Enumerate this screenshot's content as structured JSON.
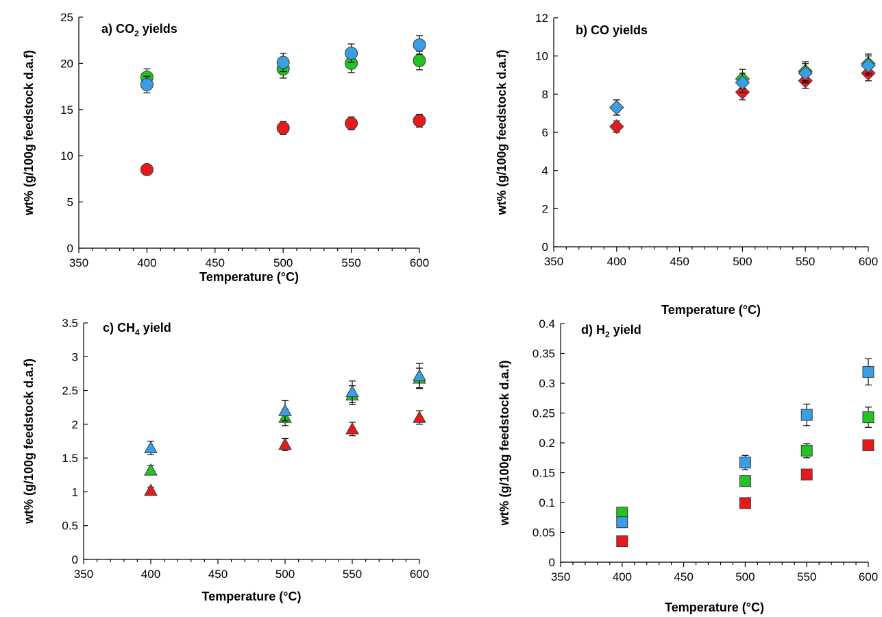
{
  "colors": {
    "red": "#e8191b",
    "green": "#22c322",
    "blue": "#3a9ee4"
  },
  "chart_data": [
    {
      "type": "scatter",
      "title": "a) CO2 yields",
      "title_parts": [
        "a) CO",
        "2",
        " yields"
      ],
      "xlabel": "Temperature (°C)",
      "ylabel": "wt% (g/100g feedstock d.a.f)",
      "xlim": [
        350,
        600
      ],
      "ylim": [
        0,
        25
      ],
      "xticks": [
        "350",
        "400",
        "450",
        "500",
        "550",
        "600"
      ],
      "yticks": [
        "0",
        "5",
        "10",
        "15",
        "20",
        "25"
      ],
      "marker": "circle",
      "grid": false,
      "series": [
        {
          "color": "red",
          "x": [
            400,
            500,
            550,
            600
          ],
          "y": [
            8.5,
            13.0,
            13.5,
            13.8
          ],
          "err": [
            0.3,
            0.7,
            0.7,
            0.7
          ]
        },
        {
          "color": "green",
          "x": [
            400,
            500,
            550,
            600
          ],
          "y": [
            18.5,
            19.4,
            20.0,
            20.3
          ],
          "err": [
            0.9,
            1.0,
            1.0,
            1.0
          ]
        },
        {
          "color": "blue",
          "x": [
            400,
            500,
            550,
            600
          ],
          "y": [
            17.7,
            20.1,
            21.1,
            22.0
          ],
          "err": [
            0.9,
            1.0,
            1.0,
            1.0
          ]
        }
      ]
    },
    {
      "type": "scatter",
      "title": "b) CO yields",
      "title_parts": [
        "b) CO yields",
        "",
        ""
      ],
      "xlabel": "Temperature (°C)",
      "ylabel": "wt% (g/100g feedstock d.a.f)",
      "xlim": [
        350,
        600
      ],
      "ylim": [
        0,
        12
      ],
      "xticks": [
        "350",
        "400",
        "450",
        "500",
        "550",
        "600"
      ],
      "yticks": [
        "0",
        "2",
        "4",
        "6",
        "8",
        "10",
        "12"
      ],
      "marker": "diamond",
      "grid": false,
      "series": [
        {
          "color": "red",
          "x": [
            400,
            500,
            550,
            600
          ],
          "y": [
            6.3,
            8.1,
            8.7,
            9.1
          ],
          "err": [
            0.3,
            0.4,
            0.4,
            0.4
          ]
        },
        {
          "color": "green",
          "x": [
            400,
            500,
            550,
            600
          ],
          "y": [
            7.3,
            8.8,
            9.2,
            9.6
          ],
          "err": [
            0.4,
            0.5,
            0.5,
            0.5
          ]
        },
        {
          "color": "blue",
          "x": [
            400,
            500,
            550,
            600
          ],
          "y": [
            7.3,
            8.6,
            9.1,
            9.5
          ],
          "err": [
            0.4,
            0.5,
            0.5,
            0.5
          ]
        }
      ]
    },
    {
      "type": "scatter",
      "title": "c) CH4 yield",
      "title_parts": [
        "c) CH",
        "4",
        " yield"
      ],
      "xlabel": "Temperature (°C)",
      "ylabel": "wt% (g/100g feedstock d.a.f)",
      "xlim": [
        350,
        600
      ],
      "ylim": [
        0,
        3.5
      ],
      "xticks": [
        "350",
        "400",
        "450",
        "500",
        "550",
        "600"
      ],
      "yticks": [
        "0",
        "0.5",
        "1",
        "1.5",
        "2",
        "2.5",
        "3",
        "3.5"
      ],
      "marker": "triangle",
      "grid": false,
      "series": [
        {
          "color": "red",
          "x": [
            400,
            500,
            550,
            600
          ],
          "y": [
            1.02,
            1.7,
            1.93,
            2.1
          ],
          "err": [
            0.05,
            0.09,
            0.1,
            0.1
          ]
        },
        {
          "color": "green",
          "x": [
            400,
            500,
            550,
            600
          ],
          "y": [
            1.32,
            2.1,
            2.43,
            2.68
          ],
          "err": [
            0.07,
            0.12,
            0.14,
            0.15
          ]
        },
        {
          "color": "blue",
          "x": [
            400,
            500,
            550,
            600
          ],
          "y": [
            1.65,
            2.2,
            2.48,
            2.72
          ],
          "err": [
            0.1,
            0.15,
            0.16,
            0.18
          ]
        }
      ]
    },
    {
      "type": "scatter",
      "title": "d) H2 yield",
      "title_parts": [
        "d) H",
        "2",
        " yield"
      ],
      "xlabel": "Temperature (°C)",
      "ylabel": "wt% (g/100g feedstock d.a.f)",
      "xlim": [
        350,
        600
      ],
      "ylim": [
        0,
        0.4
      ],
      "xticks": [
        "350",
        "400",
        "450",
        "500",
        "550",
        "600"
      ],
      "yticks": [
        "0",
        "0.05",
        "0.1",
        "0.15",
        "0.2",
        "0.25",
        "0.3",
        "0.35",
        "0.4"
      ],
      "marker": "square",
      "grid": false,
      "series": [
        {
          "color": "red",
          "x": [
            400,
            500,
            550,
            600
          ],
          "y": [
            0.035,
            0.099,
            0.147,
            0.196
          ],
          "err": [
            0.003,
            0.005,
            0.006,
            0.008
          ]
        },
        {
          "color": "green",
          "x": [
            400,
            500,
            550,
            600
          ],
          "y": [
            0.083,
            0.136,
            0.187,
            0.243
          ],
          "err": [
            0.005,
            0.008,
            0.012,
            0.017
          ]
        },
        {
          "color": "blue",
          "x": [
            400,
            500,
            550,
            600
          ],
          "y": [
            0.067,
            0.167,
            0.247,
            0.319
          ],
          "err": [
            0.006,
            0.012,
            0.018,
            0.022
          ]
        }
      ]
    }
  ]
}
